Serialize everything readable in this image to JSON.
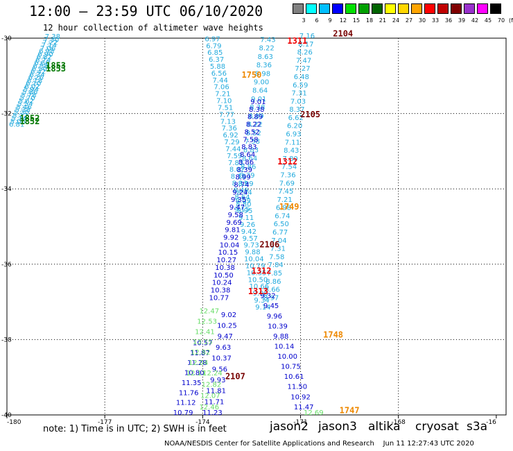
{
  "header": {
    "title": "12:00 — 23:59 UTC 06/10/2020",
    "subtitle": "12 hour collection of altimeter wave heights"
  },
  "color_scale": {
    "unit": "(ft)",
    "bins": [
      {
        "color": "#808080",
        "label": "3"
      },
      {
        "color": "#00ffff",
        "label": "6"
      },
      {
        "color": "#00bfff",
        "label": "9"
      },
      {
        "color": "#0000ff",
        "label": "12"
      },
      {
        "color": "#00e000",
        "label": "15"
      },
      {
        "color": "#00a000",
        "label": "18"
      },
      {
        "color": "#006400",
        "label": "21"
      },
      {
        "color": "#ffff00",
        "label": "24"
      },
      {
        "color": "#ffd700",
        "label": "27"
      },
      {
        "color": "#ffa500",
        "label": "30"
      },
      {
        "color": "#ff0000",
        "label": "33"
      },
      {
        "color": "#c00000",
        "label": "36"
      },
      {
        "color": "#800000",
        "label": "39"
      },
      {
        "color": "#9932cc",
        "label": "42"
      },
      {
        "color": "#ff00ff",
        "label": "45"
      },
      {
        "color": "#000000",
        "label": "70"
      }
    ]
  },
  "map": {
    "lon_ticks": [
      "-180",
      "-177",
      "-174",
      "-171",
      "-168",
      "-16"
    ],
    "lat_ticks": [
      "-30",
      "-32",
      "-34",
      "-36",
      "-38",
      "-40"
    ],
    "colors": {
      "cyan": "#22aadd",
      "blue": "#0000cc",
      "lightgreen": "#66dd66",
      "darkgreen": "#007700",
      "orange": "#ee8800",
      "red": "#ee0000",
      "maroon": "#770000"
    },
    "time_labels": [
      {
        "text": "2104",
        "color": "maroon",
        "lon": -169.7,
        "lat": -29.95
      },
      {
        "text": "1311",
        "color": "red",
        "lon": -171.1,
        "lat": -30.15
      },
      {
        "text": "1853",
        "color": "darkgreen",
        "lon": -178.5,
        "lat": -30.8
      },
      {
        "text": "1853",
        "color": "darkgreen",
        "lon": -178.5,
        "lat": -30.88
      },
      {
        "text": "1750",
        "color": "orange",
        "lon": -172.5,
        "lat": -31.05
      },
      {
        "text": "2105",
        "color": "maroon",
        "lon": -170.7,
        "lat": -32.1
      },
      {
        "text": "1852",
        "color": "darkgreen",
        "lon": -179.3,
        "lat": -32.2
      },
      {
        "text": "1852",
        "color": "darkgreen",
        "lon": -179.3,
        "lat": -32.28
      },
      {
        "text": "1312",
        "color": "red",
        "lon": -171.4,
        "lat": -33.35
      },
      {
        "text": "1749",
        "color": "orange",
        "lon": -171.35,
        "lat": -34.55
      },
      {
        "text": "2106",
        "color": "maroon",
        "lon": -171.95,
        "lat": -35.55
      },
      {
        "text": "1312",
        "color": "red",
        "lon": -172.2,
        "lat": -36.25
      },
      {
        "text": "1313",
        "color": "red",
        "lon": -172.3,
        "lat": -36.8
      },
      {
        "text": "1748",
        "color": "orange",
        "lon": -170.0,
        "lat": -37.95
      },
      {
        "text": "2107",
        "color": "maroon",
        "lon": -173.0,
        "lat": -39.05
      },
      {
        "text": "1747",
        "color": "orange",
        "lon": -169.5,
        "lat": -39.95
      }
    ],
    "tracks": [
      {
        "color": "cyan",
        "x0": -178.6,
        "y0": -30.02,
        "x1": -179.7,
        "y1": -32.35,
        "values": [
          "7.38",
          "7.30",
          "7.22",
          "7.14",
          "7.06",
          "6.98",
          "6.90",
          "6.82",
          "6.74",
          "6.66",
          "6.58",
          "6.50",
          "6.42",
          "6.34",
          "6.26",
          "6.18",
          "6.10",
          "6.02",
          "5.94",
          "5.86",
          "5.78",
          "5.70",
          "5.62",
          "5.54",
          "5.46",
          "5.38",
          "5.30",
          "5.22",
          "5.14",
          "5.06",
          "6.81"
        ]
      },
      {
        "color": "cyan",
        "x0": -173.7,
        "y0": -30.08,
        "x1": -172.15,
        "y1": -37.2,
        "values": [
          "6.97",
          "6.79",
          "6.85",
          "6.37",
          "5.88",
          "6.56",
          "7.44",
          "7.06",
          "7.21",
          "7.10",
          "7.51",
          "7.77",
          "7.13",
          "7.36",
          "6.92",
          "7.29",
          "7.44",
          "7.59",
          "7.83",
          "8.02",
          "8.18",
          "8.33",
          "8.49",
          "8.64",
          "8.80",
          "8.95",
          "9.11",
          "9.26",
          "9.42",
          "9.57",
          "9.73",
          "9.88",
          "10.04",
          "10.19",
          "10.35",
          "10.50",
          "10.66",
          "9.98",
          "9.34",
          "9.14"
        ]
      },
      {
        "color": "cyan",
        "x0": -170.8,
        "y0": -30.0,
        "x1": -171.9,
        "y1": -36.95,
        "values": [
          "7.16",
          "8.17",
          "8.26",
          "7.47",
          "7.27",
          "6.48",
          "6.59",
          "7.31",
          "7.03",
          "8.37",
          "6.62",
          "6.20",
          "6.93",
          "7.11",
          "8.43",
          "7.80",
          "7.54",
          "7.36",
          "7.69",
          "7.45",
          "7.21",
          "6.98",
          "6.74",
          "6.50",
          "6.77",
          "7.04",
          "7.31",
          "7.58",
          "7.84",
          "7.85",
          "8.86",
          "8.66",
          "8.97"
        ]
      },
      {
        "color": "cyan",
        "x0": -172.0,
        "y0": -30.1,
        "x1": -172.8,
        "y1": -34.6,
        "values": [
          "7.43",
          "8.22",
          "8.63",
          "8.36",
          "8.98",
          "9.00",
          "8.64",
          "9.01",
          "8.38",
          "8.89",
          "8.22",
          "8.52",
          "7.58",
          "8.83",
          "8.64",
          "8.86",
          "8.39",
          "8.99",
          "8.74",
          "9.09",
          "9.15"
        ]
      },
      {
        "color": "blue",
        "x0": -172.3,
        "y0": -31.75,
        "x1": -173.5,
        "y1": -36.95,
        "values": [
          "9.01",
          "8.38",
          "8.89",
          "8.22",
          "8.52",
          "7.58",
          "8.83",
          "8.64",
          "8.86",
          "8.39",
          "8.99",
          "8.74",
          "9.24",
          "9.35",
          "9.47",
          "9.58",
          "9.69",
          "9.81",
          "9.92",
          "10.04",
          "10.15",
          "10.27",
          "10.38",
          "10.50",
          "10.24",
          "10.38",
          "10.77"
        ]
      },
      {
        "color": "blue",
        "x0": -172.0,
        "y0": -36.9,
        "x1": -170.9,
        "y1": -39.85,
        "values": [
          "9.32",
          "9.45",
          "9.96",
          "10.39",
          "9.88",
          "10.14",
          "10.00",
          "10.75",
          "10.61",
          "11.50",
          "10.92",
          "11.47"
        ]
      },
      {
        "color": "blue",
        "x0": -173.2,
        "y0": -37.4,
        "x1": -173.7,
        "y1": -40.0,
        "values": [
          "9.02",
          "10.25",
          "9.47",
          "9.63",
          "10.37",
          "9.56",
          "9.93",
          "11.81",
          "11.71",
          "11.23"
        ]
      },
      {
        "color": "blue",
        "x0": -174.0,
        "y0": -38.15,
        "x1": -174.6,
        "y1": -40.0,
        "values": [
          "10.57",
          "11.87",
          "11.28",
          "10.80",
          "11.35",
          "11.76",
          "11.12",
          "10.79"
        ]
      },
      {
        "color": "lightgreen",
        "x0": -173.8,
        "y0": -37.3,
        "x1": -174.2,
        "y1": -38.95,
        "values": [
          "12.47",
          "12.53",
          "12.41",
          "13.15",
          "12.82",
          "12.04",
          "12.17"
        ]
      },
      {
        "color": "lightgreen",
        "x0": -173.7,
        "y0": -38.95,
        "x1": -173.8,
        "y1": -39.85,
        "values": [
          "12.24",
          "12.82",
          "12.07",
          "12.46"
        ]
      },
      {
        "color": "lightgreen",
        "x0": -170.6,
        "y0": -40.0,
        "x1": -170.6,
        "y1": -40.0,
        "values": [
          "12.69"
        ]
      }
    ]
  },
  "footer": {
    "note": "note: 1) Time is in UTC; 2) SWH is in feet",
    "satellites": [
      {
        "name": "jason2",
        "color": "#0000cc"
      },
      {
        "name": "jason3",
        "color": "#009900"
      },
      {
        "name": "altika",
        "color": "#ee8800"
      },
      {
        "name": "cryosat",
        "color": "#ee0000"
      },
      {
        "name": "s3a",
        "color": "#770000"
      }
    ],
    "credit": "NOAA/NESDIS Center for Satellite Applications and Research    Jun 11 12:27:43 UTC 2020"
  }
}
